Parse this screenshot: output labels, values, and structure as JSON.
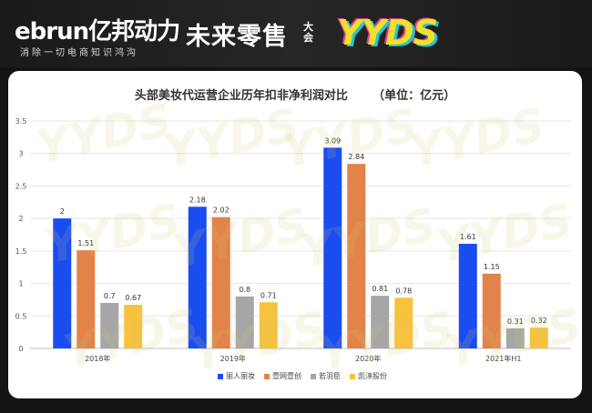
{
  "header": {
    "brand_logo": "ebrun亿邦动力",
    "brand_tagline": "消除一切电商知识鸿沟",
    "event_title": "未来零售",
    "event_suffix": "大会",
    "event_badge": "YYDS"
  },
  "watermark_text": "YYDS",
  "chart_data": {
    "type": "bar",
    "title": "头部美妆代运营企业历年扣非净利润对比      （单位：亿元）",
    "categories": [
      "2018年",
      "2019年",
      "2020年",
      "2021年H1"
    ],
    "series": [
      {
        "name": "丽人丽妆",
        "color": "#1a4df0",
        "values": [
          2,
          2.18,
          3.09,
          1.61
        ]
      },
      {
        "name": "壹网壹创",
        "color": "#e2834a",
        "values": [
          1.51,
          2.02,
          2.84,
          1.15
        ]
      },
      {
        "name": "若羽臣",
        "color": "#a6a6a6",
        "values": [
          0.7,
          0.8,
          0.81,
          0.31
        ]
      },
      {
        "name": "凯淳股份",
        "color": "#f7c23c",
        "values": [
          0.67,
          0.71,
          0.78,
          0.32
        ]
      }
    ],
    "yticks": [
      "0",
      "0.5",
      "1",
      "1.5",
      "2",
      "2.5",
      "3",
      "3.5"
    ],
    "ylim": [
      0,
      3.5
    ],
    "grid": true,
    "legend_position": "bottom"
  }
}
